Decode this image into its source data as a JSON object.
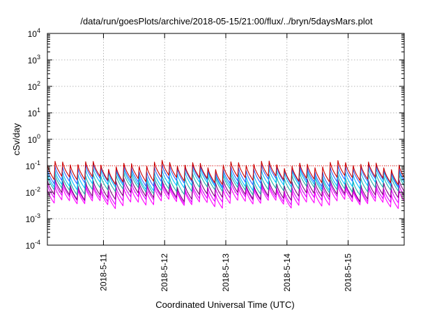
{
  "chart_data": {
    "type": "line",
    "title": "/data/run/goesPlots/archive/2018-05-15/21:00/flux/../bryn/5daysMars.plot",
    "xlabel": "Coordinated Universal Time (UTC)",
    "ylabel": "cSv/day",
    "yscale": "log",
    "ylim": [
      0.0001,
      10000
    ],
    "xlim": [
      "2018-05-10T02:00",
      "2018-05-15T22:00"
    ],
    "grid": true,
    "legend": "none",
    "yticks": [
      {
        "base": "10",
        "exp": "-4",
        "value": 0.0001
      },
      {
        "base": "10",
        "exp": "-3",
        "value": 0.001
      },
      {
        "base": "10",
        "exp": "-2",
        "value": 0.01
      },
      {
        "base": "10",
        "exp": "-1",
        "value": 0.1
      },
      {
        "base": "10",
        "exp": "0",
        "value": 1
      },
      {
        "base": "10",
        "exp": "1",
        "value": 10
      },
      {
        "base": "10",
        "exp": "2",
        "value": 100
      },
      {
        "base": "10",
        "exp": "3",
        "value": 1000
      },
      {
        "base": "10",
        "exp": "4",
        "value": 10000
      }
    ],
    "xticks": [
      {
        "label": "2018-5-11",
        "time": "2018-05-11T00:00"
      },
      {
        "label": "2018-5-12",
        "time": "2018-05-12T00:00"
      },
      {
        "label": "2018-5-13",
        "time": "2018-05-13T00:00"
      },
      {
        "label": "2018-5-14",
        "time": "2018-05-14T00:00"
      },
      {
        "label": "2018-5-15",
        "time": "2018-05-15T00:00"
      }
    ],
    "threshold_line": {
      "value": 0.1,
      "color": "#ff0000"
    },
    "cycle_hours": 3,
    "series": [
      {
        "color": "#ff00ff",
        "peak": 0.013,
        "trough": 0.0035
      },
      {
        "color": "#e000ff",
        "peak": 0.018,
        "trough": 0.005
      },
      {
        "color": "#800080",
        "peak": 0.025,
        "trough": 0.0065
      },
      {
        "color": "#20b2aa",
        "peak": 0.04,
        "trough": 0.011
      },
      {
        "color": "#00bfff",
        "peak": 0.06,
        "trough": 0.016
      },
      {
        "color": "#3060ff",
        "peak": 0.085,
        "trough": 0.022
      },
      {
        "color": "#cc0000",
        "peak": 0.115,
        "trough": 0.028
      }
    ]
  }
}
